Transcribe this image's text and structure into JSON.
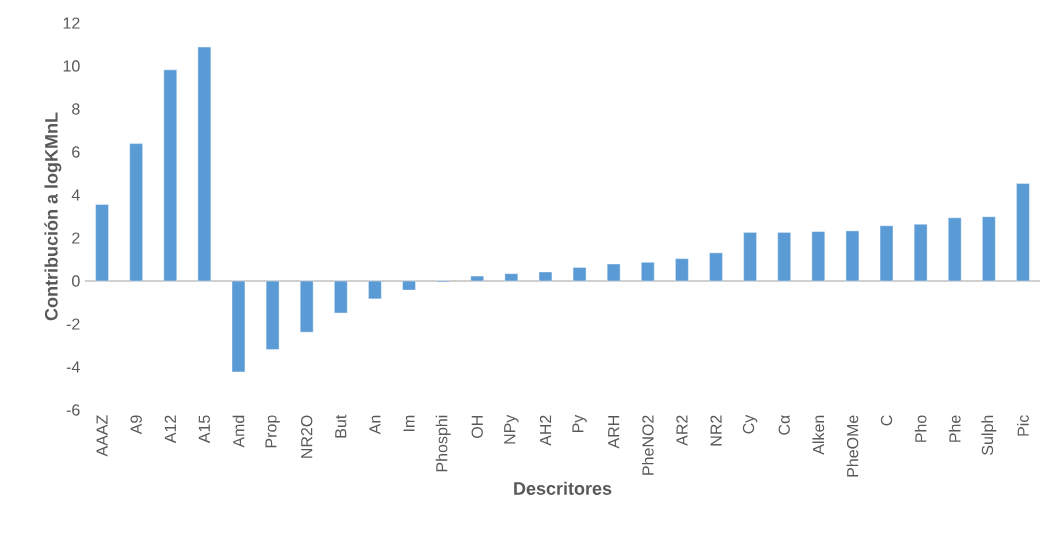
{
  "chart_data": {
    "type": "bar",
    "xlabel": "Descritores",
    "ylabel": "Contribución a logKMnL",
    "categories": [
      "AAAZ",
      "A9",
      "A12",
      "A15",
      "Amd",
      "Prop",
      "NR2O",
      "But",
      "An",
      "Im",
      "Phosphi",
      "OH",
      "NPy",
      "AH2",
      "Py",
      "ARH",
      "PheNO2",
      "AR2",
      "NR2",
      "Cy",
      "Cα",
      "Alken",
      "PheOMe",
      "C",
      "Pho",
      "Phe",
      "Sulph",
      "Pic"
    ],
    "values": [
      3.56,
      6.39,
      9.82,
      10.88,
      -4.23,
      -3.19,
      -2.38,
      -1.49,
      -0.83,
      -0.42,
      -0.05,
      0.23,
      0.34,
      0.42,
      0.63,
      0.79,
      0.87,
      1.04,
      1.31,
      2.26,
      2.26,
      2.3,
      2.33,
      2.57,
      2.64,
      2.94,
      2.99,
      4.54
    ],
    "color": "#5b9bd5",
    "ylim": [
      -6,
      12
    ],
    "yticks": [
      -6,
      -4,
      -2,
      0,
      2,
      4,
      6,
      8,
      10,
      12
    ]
  }
}
